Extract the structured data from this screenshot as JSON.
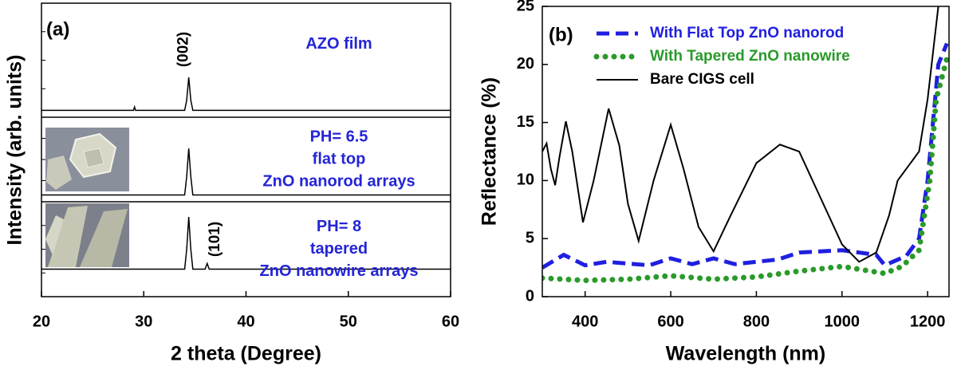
{
  "chart_data": [
    {
      "type": "xrd",
      "panel_label": "(a)",
      "xlabel": "2 theta (Degree)",
      "ylabel": "Intensity (arb. units)",
      "xlim": [
        20,
        60
      ],
      "xticks": [
        20,
        30,
        40,
        50,
        60
      ],
      "peak_labels": [
        {
          "label": "(002)",
          "x": 34.4
        },
        {
          "label": "(101)",
          "x": 36.2
        }
      ],
      "panels": [
        {
          "annotation": [
            "AZO film"
          ],
          "ylim": [
            0,
            1
          ],
          "color": "#000000",
          "x": [
            20,
            29,
            29.1,
            29.2,
            34.0,
            34.2,
            34.4,
            34.6,
            34.8,
            60
          ],
          "values": [
            0.06,
            0.06,
            0.09,
            0.06,
            0.06,
            0.15,
            0.35,
            0.15,
            0.06,
            0.06
          ]
        },
        {
          "annotation": [
            "PH= 6.5",
            "flat top",
            "ZnO nanorod arrays"
          ],
          "ylim": [
            0,
            1
          ],
          "color": "#000000",
          "x": [
            20,
            34.0,
            34.2,
            34.4,
            34.6,
            34.8,
            60
          ],
          "values": [
            0.08,
            0.08,
            0.3,
            0.63,
            0.3,
            0.08,
            0.08
          ]
        },
        {
          "annotation": [
            "PH= 8",
            "tapered",
            "ZnO nanowire arrays"
          ],
          "ylim": [
            0,
            1
          ],
          "color": "#000000",
          "x": [
            20,
            34.0,
            34.2,
            34.4,
            34.6,
            34.8,
            36.0,
            36.2,
            36.4,
            60
          ],
          "values": [
            0.29,
            0.29,
            0.5,
            0.84,
            0.5,
            0.29,
            0.29,
            0.35,
            0.29,
            0.29
          ]
        }
      ]
    },
    {
      "type": "line",
      "panel_label": "(b)",
      "xlabel": "Wavelength (nm)",
      "ylabel": "Reflectance (%)",
      "xlim": [
        300,
        1250
      ],
      "xticks": [
        400,
        600,
        800,
        1000,
        1200
      ],
      "ylim": [
        0,
        25
      ],
      "yticks": [
        0,
        5,
        10,
        15,
        20,
        25
      ],
      "legend": "upper left",
      "series": [
        {
          "name": "With Flat Top ZnO nanorod",
          "color": "#1f1fe0",
          "style": "dashed",
          "x": [
            300,
            350,
            400,
            450,
            550,
            600,
            650,
            700,
            750,
            850,
            900,
            1000,
            1080,
            1100,
            1150,
            1180,
            1200,
            1225,
            1245
          ],
          "values": [
            2.5,
            3.6,
            2.7,
            3.0,
            2.7,
            3.3,
            2.8,
            3.3,
            2.8,
            3.2,
            3.8,
            4.0,
            3.6,
            2.7,
            3.5,
            5,
            10,
            20,
            21.8
          ]
        },
        {
          "name": "With Tapered ZnO nanowire",
          "color": "#2a9a2a",
          "style": "dotted",
          "x": [
            300,
            400,
            500,
            600,
            700,
            800,
            900,
            1000,
            1100,
            1140,
            1180,
            1205,
            1220,
            1245
          ],
          "values": [
            1.6,
            1.4,
            1.5,
            1.8,
            1.5,
            1.7,
            2.2,
            2.6,
            2.0,
            2.6,
            4,
            10,
            17,
            20.5
          ]
        },
        {
          "name": "Bare CIGS cell",
          "color": "#000000",
          "style": "solid",
          "x": [
            300,
            310,
            320,
            330,
            340,
            355,
            370,
            395,
            420,
            455,
            480,
            500,
            525,
            560,
            600,
            630,
            665,
            700,
            740,
            800,
            855,
            900,
            950,
            1000,
            1040,
            1080,
            1110,
            1130,
            1160,
            1180,
            1200,
            1225
          ],
          "values": [
            12.5,
            13.2,
            11,
            9.6,
            12,
            15.1,
            12.5,
            6.4,
            10,
            16.2,
            13,
            8,
            4.8,
            10,
            14.8,
            11,
            6,
            3.9,
            7,
            11.5,
            13.1,
            12.5,
            8.5,
            4.5,
            3.0,
            3.8,
            7,
            10,
            11.5,
            12.5,
            17,
            25
          ]
        }
      ]
    }
  ]
}
